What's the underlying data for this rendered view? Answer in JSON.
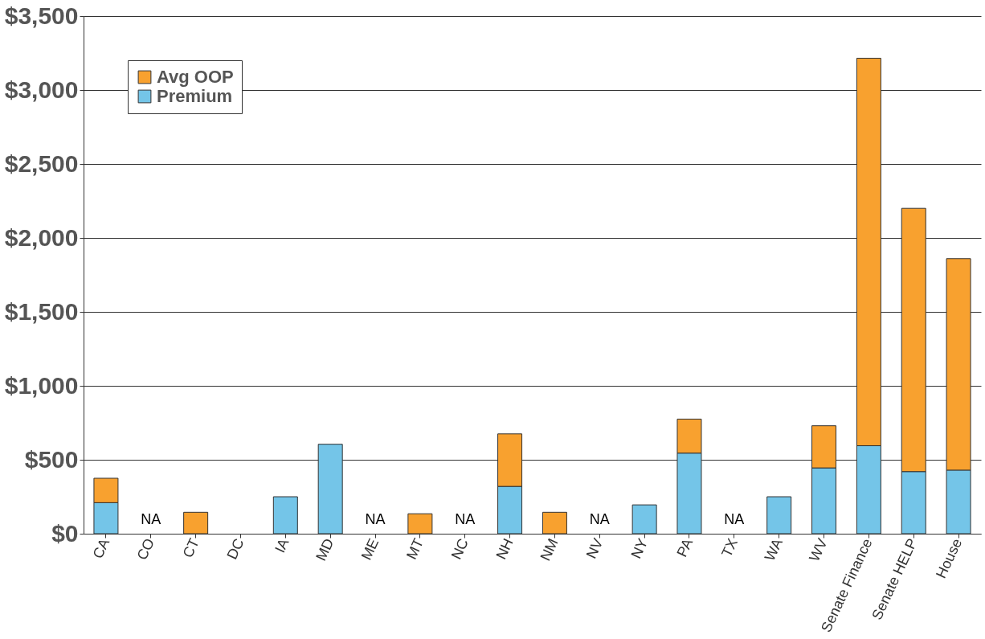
{
  "chart_data": {
    "type": "bar",
    "stacked": true,
    "categories": [
      "CA",
      "CO",
      "CT",
      "DC",
      "IA",
      "MD",
      "ME",
      "MT",
      "NC",
      "NH",
      "NM",
      "NV",
      "NY",
      "PA",
      "TX",
      "WA",
      "WV",
      "Senate Finance",
      "Senate HELP",
      "House"
    ],
    "series": [
      {
        "name": "Premium",
        "color": "#74c5e8",
        "values": [
          210,
          null,
          null,
          null,
          250,
          605,
          null,
          null,
          null,
          320,
          null,
          null,
          195,
          545,
          null,
          250,
          445,
          595,
          420,
          430
        ],
        "value_labels": [
          null,
          "NA",
          null,
          null,
          null,
          null,
          "NA",
          null,
          "NA",
          null,
          null,
          "NA",
          null,
          null,
          "NA",
          null,
          null,
          null,
          null,
          null
        ]
      },
      {
        "name": "Avg OOP",
        "color": "#f8a12f",
        "values": [
          165,
          null,
          145,
          null,
          null,
          null,
          null,
          135,
          null,
          355,
          145,
          null,
          null,
          230,
          null,
          null,
          285,
          2620,
          1780,
          1430
        ]
      }
    ],
    "ylim": [
      0,
      3500
    ],
    "yticks": [
      {
        "value": 0,
        "label": "$0"
      },
      {
        "value": 500,
        "label": "$500"
      },
      {
        "value": 1000,
        "label": "$1,000"
      },
      {
        "value": 1500,
        "label": "$1,500"
      },
      {
        "value": 2000,
        "label": "$2,000"
      },
      {
        "value": 2500,
        "label": "$2,500"
      },
      {
        "value": 3000,
        "label": "$3,000"
      },
      {
        "value": 3500,
        "label": "$3,500"
      }
    ],
    "grid": "y",
    "legend": "top left"
  }
}
